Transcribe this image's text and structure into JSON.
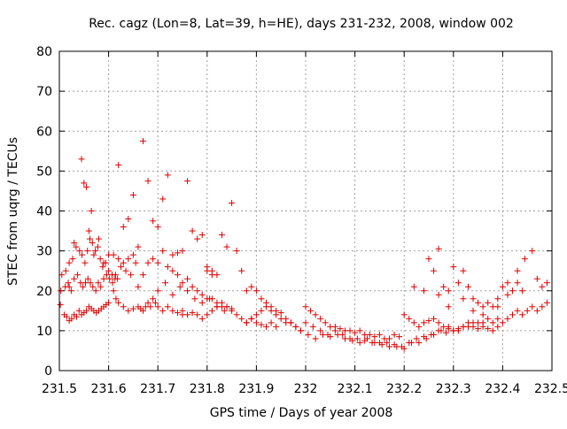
{
  "chart_data": {
    "type": "scatter",
    "title": "Rec. cagz (Lon=8, Lat=39, h=HE), days 231-232, 2008, window 002",
    "xlabel": "GPS time / Days of year 2008",
    "ylabel": "STEC from uqrg / TECUs",
    "xlim": [
      231.5,
      232.5
    ],
    "ylim": [
      0,
      80
    ],
    "xticks": [
      "231.5",
      "231.6",
      "231.7",
      "231.8",
      "231.9",
      "232",
      "232.1",
      "232.2",
      "232.3",
      "232.4",
      "232.5"
    ],
    "yticks": [
      "0",
      "10",
      "20",
      "30",
      "40",
      "50",
      "60",
      "70",
      "80"
    ],
    "grid": true,
    "marker": "+",
    "color": "#dd0000",
    "series": [
      {
        "x": [
          231.502,
          231.51,
          231.515,
          231.52,
          231.525,
          231.53,
          231.535,
          231.54,
          231.545,
          231.55,
          231.555,
          231.56,
          231.565,
          231.57,
          231.575,
          231.58,
          231.585,
          231.59,
          231.595,
          231.6,
          231.503,
          231.512,
          231.518,
          231.524,
          231.53,
          231.537,
          231.543,
          231.548,
          231.553,
          231.558,
          231.563,
          231.568,
          231.574,
          231.579,
          231.584,
          231.59,
          231.596,
          231.602,
          231.608,
          231.614,
          231.505,
          231.513,
          231.52,
          231.527,
          231.534,
          231.541,
          231.546,
          231.552,
          231.557,
          231.562,
          231.567,
          231.573,
          231.578,
          231.583,
          231.588,
          231.594,
          231.6,
          231.607,
          231.613,
          231.618,
          231.52,
          231.53,
          231.545,
          231.55,
          231.555,
          231.56,
          231.565,
          231.57,
          231.58,
          231.59,
          231.6,
          231.61,
          231.62,
          231.625,
          231.63,
          231.635,
          231.64,
          231.645,
          231.65,
          231.655,
          231.61,
          231.615,
          231.62,
          231.63,
          231.64,
          231.65,
          231.66,
          231.665,
          231.67,
          231.675,
          231.68,
          231.685,
          231.69,
          231.695,
          231.7,
          231.71,
          231.72,
          231.73,
          231.74,
          231.75,
          231.62,
          231.63,
          231.64,
          231.65,
          231.66,
          231.67,
          231.68,
          231.69,
          231.7,
          231.71,
          231.72,
          231.73,
          231.74,
          231.75,
          231.76,
          231.77,
          231.78,
          231.79,
          231.8,
          231.81,
          231.66,
          231.67,
          231.68,
          231.69,
          231.7,
          231.71,
          231.72,
          231.73,
          231.74,
          231.75,
          231.76,
          231.77,
          231.78,
          231.79,
          231.8,
          231.81,
          231.82,
          231.83,
          231.84,
          231.85,
          231.7,
          231.715,
          231.73,
          231.745,
          231.76,
          231.775,
          231.79,
          231.805,
          231.82,
          231.835,
          231.75,
          231.76,
          231.77,
          231.78,
          231.79,
          231.8,
          231.81,
          231.82,
          231.83,
          231.84,
          231.85,
          231.86,
          231.87,
          231.88,
          231.89,
          231.9,
          231.91,
          231.92,
          231.93,
          231.94,
          231.8,
          231.81,
          231.82,
          231.83,
          231.84,
          231.85,
          231.86,
          231.87,
          231.88,
          231.89,
          231.9,
          231.91,
          231.92,
          231.93,
          231.94,
          231.95,
          231.96,
          231.97,
          231.98,
          231.99,
          231.88,
          231.89,
          231.9,
          231.91,
          231.92,
          231.93,
          231.94,
          231.95,
          231.96,
          231.97,
          231.98,
          231.99,
          232.0,
          232.01,
          232.02,
          232.03,
          232.04,
          232.05,
          232.06,
          232.07,
          232.08,
          232.09,
          232.1,
          232.11,
          232.12,
          232.13,
          232.14,
          232.15,
          232.16,
          232.17,
          232.18,
          232.19,
          232.0,
          232.015,
          232.03,
          232.045,
          232.06,
          232.075,
          232.09,
          232.105,
          232.12,
          232.135,
          232.15,
          232.165,
          232.18,
          232.195,
          232.21,
          232.225,
          232.24,
          232.255,
          232.27,
          232.285,
          232.005,
          232.02,
          232.035,
          232.05,
          232.065,
          232.08,
          232.095,
          232.11,
          232.125,
          232.14,
          232.155,
          232.17,
          232.185,
          232.2,
          232.215,
          232.23,
          232.245,
          232.26,
          232.275,
          232.29,
          232.2,
          232.21,
          232.22,
          232.23,
          232.24,
          232.25,
          232.26,
          232.27,
          232.28,
          232.29,
          232.3,
          232.31,
          232.32,
          232.33,
          232.34,
          232.35,
          232.36,
          232.37,
          232.38,
          232.39,
          232.25,
          232.26,
          232.27,
          232.28,
          232.29,
          232.3,
          232.31,
          232.32,
          232.33,
          232.34,
          232.35,
          232.36,
          232.37,
          232.38,
          232.39,
          232.4,
          232.41,
          232.42,
          232.43,
          232.44,
          232.3,
          232.31,
          232.32,
          232.33,
          232.34,
          232.35,
          232.36,
          232.37,
          232.38,
          232.39,
          232.4,
          232.41,
          232.42,
          232.43,
          232.44,
          232.45,
          232.46,
          232.47,
          232.48,
          232.49,
          232.22,
          232.24,
          232.27,
          232.29,
          232.32,
          232.34,
          232.36,
          232.39,
          232.41,
          232.43,
          232.445,
          232.46,
          232.47,
          232.48,
          232.49
        ],
        "y": [
          16.5,
          14,
          13.5,
          12.5,
          13,
          14,
          13.5,
          15,
          14,
          14.5,
          15,
          16,
          15.5,
          15,
          14.5,
          15,
          15.5,
          16,
          16.5,
          17,
          20,
          21,
          22,
          20,
          23,
          24,
          22,
          21,
          22,
          23,
          22,
          21,
          20,
          22,
          21,
          23,
          24,
          23,
          22,
          24,
          24,
          25,
          27,
          28,
          31,
          30,
          29,
          27,
          30,
          33,
          32,
          30,
          31,
          28,
          26,
          27,
          25,
          24,
          23,
          23,
          21,
          32,
          53,
          47,
          46,
          35,
          40,
          29,
          33,
          27,
          29,
          29,
          28,
          26,
          27,
          25,
          28,
          24,
          29,
          27,
          20,
          18,
          17,
          16,
          15,
          15.5,
          16,
          15.5,
          15,
          16,
          17,
          16,
          18,
          17,
          16,
          15,
          16,
          15,
          14.5,
          14,
          51.5,
          36,
          38,
          44,
          31,
          57.5,
          47.5,
          37.5,
          36,
          43,
          49,
          29,
          29.5,
          30,
          47.5,
          35,
          33,
          34,
          25,
          24,
          21,
          24,
          27,
          28,
          27,
          30,
          26,
          25,
          24,
          22,
          23,
          21,
          20,
          19,
          18,
          18,
          17,
          16,
          16,
          15.5,
          20,
          22,
          19,
          21,
          20,
          18,
          17,
          18,
          16,
          15,
          15,
          14,
          14.5,
          14,
          13,
          14,
          15,
          16,
          17,
          16,
          15,
          14,
          13,
          12,
          13,
          12,
          11.5,
          11,
          12,
          11,
          26,
          25,
          24,
          34,
          31,
          42,
          30,
          25,
          20,
          21,
          20,
          18,
          17,
          16,
          15,
          13,
          12,
          12,
          11,
          10,
          12,
          13,
          14,
          15,
          16,
          15,
          14,
          14.5,
          13,
          12,
          11,
          10,
          16,
          15,
          14,
          13,
          12,
          11,
          11,
          10.5,
          10,
          10,
          9.5,
          10,
          9,
          9,
          8.5,
          9,
          8,
          8,
          9,
          8.5,
          12,
          11,
          10,
          9,
          10,
          9,
          8,
          8,
          7.5,
          7,
          7,
          7,
          6.5,
          6,
          7,
          8,
          8.5,
          9,
          10,
          9.5,
          9,
          8,
          9,
          8.5,
          9,
          8,
          7.5,
          7,
          8,
          7,
          6.5,
          6,
          6,
          5.5,
          7,
          7,
          8,
          9,
          10,
          10.5,
          14,
          13,
          12,
          11,
          12,
          12.5,
          13,
          12,
          11,
          11,
          10,
          10,
          11,
          11,
          12,
          10.5,
          11,
          10.5,
          10,
          11,
          28,
          25,
          30.5,
          21,
          20,
          26,
          22,
          25,
          21,
          18,
          17,
          16,
          17,
          16,
          18,
          21,
          19,
          20,
          22,
          20,
          10,
          10.5,
          11,
          12,
          11,
          12,
          12,
          13,
          12,
          13,
          12,
          13,
          14,
          15,
          14,
          15,
          16,
          15,
          16,
          17,
          21,
          20,
          19,
          16,
          18,
          15,
          14,
          16,
          22,
          25,
          28,
          30,
          23,
          21,
          22
        ]
      }
    ]
  }
}
